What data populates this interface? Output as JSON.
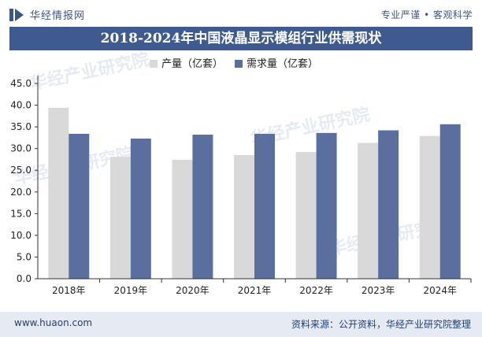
{
  "header": {
    "brand": "华经情报网",
    "tagline": "专业严谨 • 客观科学",
    "title": "2018-2024年中国液晶显示模组行业供需现状"
  },
  "footer": {
    "url": "www.huaon.com",
    "source": "资料来源：公开资料，华经产业研究院整理"
  },
  "colors": {
    "production": "#d9d9d9",
    "demand": "#5b6f9e",
    "title_bg": "#3e5a8e",
    "footer_bg": "#e6ebf3"
  },
  "chart_data": {
    "type": "bar",
    "title": "2018-2024年中国液晶显示模组行业供需现状",
    "categories": [
      "2018年",
      "2019年",
      "2020年",
      "2021年",
      "2022年",
      "2023年",
      "2024年"
    ],
    "series": [
      {
        "name": "产量（亿套）",
        "values": [
          39.4,
          28.1,
          27.4,
          28.5,
          29.2,
          31.3,
          32.9
        ]
      },
      {
        "name": "需求量（亿套）",
        "values": [
          33.4,
          32.3,
          33.2,
          33.4,
          33.6,
          34.2,
          35.6
        ]
      }
    ],
    "xlabel": "",
    "ylabel": "",
    "ylim": [
      0,
      45
    ],
    "yticks": [
      "0.0",
      "5.0",
      "10.0",
      "15.0",
      "20.0",
      "25.0",
      "30.0",
      "35.0",
      "40.0",
      "45.0"
    ],
    "legend_position": "top-center",
    "grid": false
  }
}
